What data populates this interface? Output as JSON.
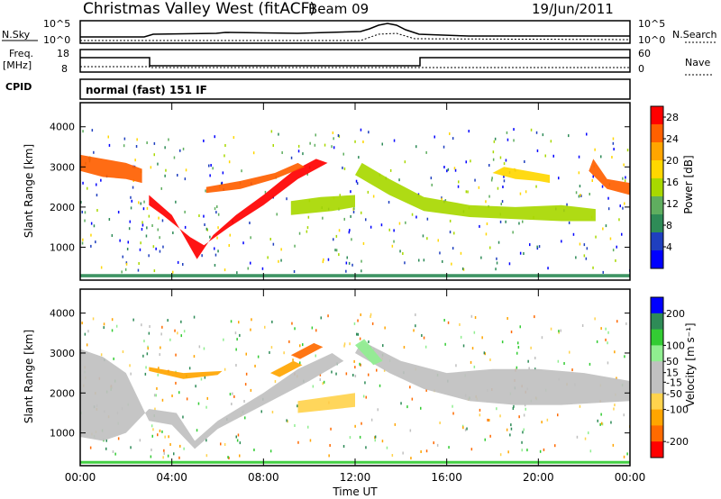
{
  "header": {
    "station": "Christmas Valley West (fitACF)",
    "beam": "Beam 09",
    "date": "19/Jun/2011"
  },
  "panels": {
    "nsky": {
      "label": "N.Sky",
      "right_label": "N.Search",
      "ticks_left": [
        "10^5",
        "10^0"
      ],
      "ticks_right": [
        "10^5",
        "10^0"
      ]
    },
    "freq": {
      "label": "Freq.",
      "unit": "[MHz]",
      "right_label": "Nave",
      "ticks_left": [
        "18",
        "8"
      ],
      "ticks_right": [
        "60",
        "0"
      ]
    },
    "cpid": {
      "label": "CPID",
      "value": "normal (fast) 151 IF"
    }
  },
  "colors": {
    "power": [
      "#0000ff",
      "#1f3fbf",
      "#2e8b57",
      "#5fae5f",
      "#a8d800",
      "#ffd700",
      "#ffa500",
      "#ff6000",
      "#ff0000"
    ],
    "velocity": [
      "#ff0000",
      "#ff6a00",
      "#ffa500",
      "#ffd34d",
      "#c0c0c0",
      "#c0c0c0",
      "#90ee90",
      "#33cc33",
      "#2e8b57",
      "#0050c0",
      "#0000ff"
    ],
    "ground": "#c0c0c0"
  },
  "chart_data": [
    {
      "type": "heatmap",
      "ylabel": "Slant Range [km]",
      "y_ticks": [
        1000,
        2000,
        3000,
        4000
      ],
      "ylim": [
        180,
        4600
      ],
      "x_ticks": [
        "00:00",
        "04:00",
        "08:00",
        "12:00",
        "16:00",
        "20:00",
        "00:00"
      ],
      "xlim": [
        0,
        24
      ],
      "colorbar": {
        "label": "Power [dB]",
        "ticks": [
          4,
          8,
          12,
          16,
          20,
          24,
          28
        ],
        "range": [
          0,
          30
        ]
      },
      "regions": [
        {
          "name": "morning-ridge",
          "value": 26,
          "points": [
            [
              0,
              2900
            ],
            [
              1,
              2750
            ],
            [
              2,
              2700
            ],
            [
              2.7,
              2600
            ],
            [
              2.7,
              2950
            ],
            [
              2,
              3100
            ],
            [
              1,
              3200
            ],
            [
              0,
              3300
            ]
          ]
        },
        {
          "name": "v-trough",
          "value": 29,
          "points": [
            [
              3.0,
              2300
            ],
            [
              4.0,
              1800
            ],
            [
              4.7,
              1100
            ],
            [
              5.1,
              700
            ],
            [
              5.8,
              1300
            ],
            [
              6.8,
              1800
            ],
            [
              8.0,
              2300
            ],
            [
              9.3,
              2900
            ],
            [
              10.3,
              3200
            ],
            [
              10.8,
              3100
            ],
            [
              9.5,
              2700
            ],
            [
              8.0,
              2050
            ],
            [
              6.5,
              1500
            ],
            [
              5.4,
              1050
            ],
            [
              4.8,
              1250
            ],
            [
              3.6,
              1800
            ],
            [
              3.0,
              2050
            ]
          ]
        },
        {
          "name": "upper-band",
          "value": 24,
          "points": [
            [
              5.5,
              2500
            ],
            [
              7,
              2650
            ],
            [
              8.5,
              2850
            ],
            [
              9.5,
              3100
            ],
            [
              9.8,
              3000
            ],
            [
              8.5,
              2700
            ],
            [
              7,
              2450
            ],
            [
              5.5,
              2350
            ]
          ]
        },
        {
          "name": "noon-band",
          "value": 14,
          "points": [
            [
              9.2,
              1800
            ],
            [
              11,
              1900
            ],
            [
              12,
              2000
            ],
            [
              12,
              2300
            ],
            [
              10.5,
              2250
            ],
            [
              9.2,
              2150
            ]
          ]
        },
        {
          "name": "afternoon-band",
          "value": 14,
          "points": [
            [
              12,
              2800
            ],
            [
              13.5,
              2300
            ],
            [
              15,
              1900
            ],
            [
              17,
              1750
            ],
            [
              19,
              1700
            ],
            [
              21,
              1650
            ],
            [
              22.5,
              1650
            ],
            [
              22.5,
              1950
            ],
            [
              21,
              2050
            ],
            [
              19,
              2000
            ],
            [
              17,
              2050
            ],
            [
              15,
              2250
            ],
            [
              13.5,
              2700
            ],
            [
              12.3,
              3100
            ]
          ]
        },
        {
          "name": "evening-echo",
          "value": 18,
          "points": [
            [
              18,
              2850
            ],
            [
              19,
              2700
            ],
            [
              20,
              2650
            ],
            [
              20.5,
              2600
            ],
            [
              20.5,
              2800
            ],
            [
              19.5,
              2900
            ],
            [
              18.5,
              3000
            ]
          ]
        },
        {
          "name": "late-echo",
          "value": 24,
          "points": [
            [
              22.4,
              3200
            ],
            [
              23,
              2700
            ],
            [
              24,
              2600
            ],
            [
              24,
              2300
            ],
            [
              23,
              2450
            ],
            [
              22.2,
              2900
            ]
          ]
        },
        {
          "name": "ground-line",
          "value": 8,
          "points": [
            [
              0,
              330
            ],
            [
              24,
              330
            ],
            [
              24,
              250
            ],
            [
              0,
              250
            ]
          ]
        }
      ]
    },
    {
      "type": "heatmap",
      "ylabel": "Slant Range [km]",
      "y_ticks": [
        1000,
        2000,
        3000,
        4000
      ],
      "ylim": [
        180,
        4600
      ],
      "x_ticks": [
        "00:00",
        "04:00",
        "08:00",
        "12:00",
        "16:00",
        "20:00",
        "00:00"
      ],
      "xlim": [
        0,
        24
      ],
      "xlabel": "Time UT",
      "colorbar": {
        "label": "Velocity [m s⁻¹]",
        "ticks": [
          -200,
          -100,
          -50,
          -15,
          15,
          50,
          100,
          200
        ],
        "range": [
          -250,
          250
        ]
      },
      "regions": [
        {
          "name": "morning-ground",
          "value": 0,
          "points": [
            [
              0,
              900
            ],
            [
              1,
              800
            ],
            [
              2,
              1000
            ],
            [
              3,
              1600
            ],
            [
              4.2,
              1500
            ],
            [
              5,
              800
            ],
            [
              6,
              1300
            ],
            [
              8,
              2000
            ],
            [
              9.5,
              2600
            ],
            [
              11,
              3000
            ],
            [
              11.5,
              2800
            ],
            [
              10,
              2300
            ],
            [
              8,
              1700
            ],
            [
              6,
              1100
            ],
            [
              5,
              600
            ],
            [
              4,
              1200
            ],
            [
              3,
              1300
            ],
            [
              2,
              2500
            ],
            [
              1,
              2900
            ],
            [
              0,
              3100
            ]
          ]
        },
        {
          "name": "afternoon-ground",
          "value": 0,
          "points": [
            [
              12,
              3000
            ],
            [
              13.5,
              2500
            ],
            [
              15,
              2100
            ],
            [
              17,
              1800
            ],
            [
              19,
              1700
            ],
            [
              21,
              1700
            ],
            [
              24,
              1800
            ],
            [
              24,
              2300
            ],
            [
              22,
              2500
            ],
            [
              20,
              2600
            ],
            [
              18,
              2600
            ],
            [
              16,
              2500
            ],
            [
              14,
              2800
            ],
            [
              12.3,
              3300
            ]
          ]
        },
        {
          "name": "neg-streak",
          "value": -160,
          "points": [
            [
              9.2,
              2950
            ],
            [
              10.2,
              3250
            ],
            [
              10.6,
              3150
            ],
            [
              9.6,
              2850
            ]
          ]
        },
        {
          "name": "neg-band",
          "value": -70,
          "points": [
            [
              8.3,
              2500
            ],
            [
              9.3,
              2800
            ],
            [
              9.7,
              2700
            ],
            [
              8.7,
              2400
            ]
          ]
        },
        {
          "name": "noon-band",
          "value": -40,
          "points": [
            [
              9.5,
              1500
            ],
            [
              12,
              1650
            ],
            [
              12,
              2000
            ],
            [
              9.5,
              1800
            ]
          ]
        },
        {
          "name": "morning-red",
          "value": -70,
          "points": [
            [
              3.0,
              2550
            ],
            [
              4.5,
              2350
            ],
            [
              6.0,
              2450
            ],
            [
              6.2,
              2550
            ],
            [
              4.5,
              2500
            ],
            [
              3.0,
              2650
            ]
          ]
        },
        {
          "name": "pos-noon",
          "value": 40,
          "points": [
            [
              12,
              3200
            ],
            [
              12.8,
              2700
            ],
            [
              13.2,
              2800
            ],
            [
              12.4,
              3350
            ]
          ]
        },
        {
          "name": "ground-green",
          "value": 60,
          "points": [
            [
              0,
              300
            ],
            [
              24,
              300
            ],
            [
              24,
              230
            ],
            [
              0,
              230
            ]
          ]
        }
      ]
    }
  ]
}
